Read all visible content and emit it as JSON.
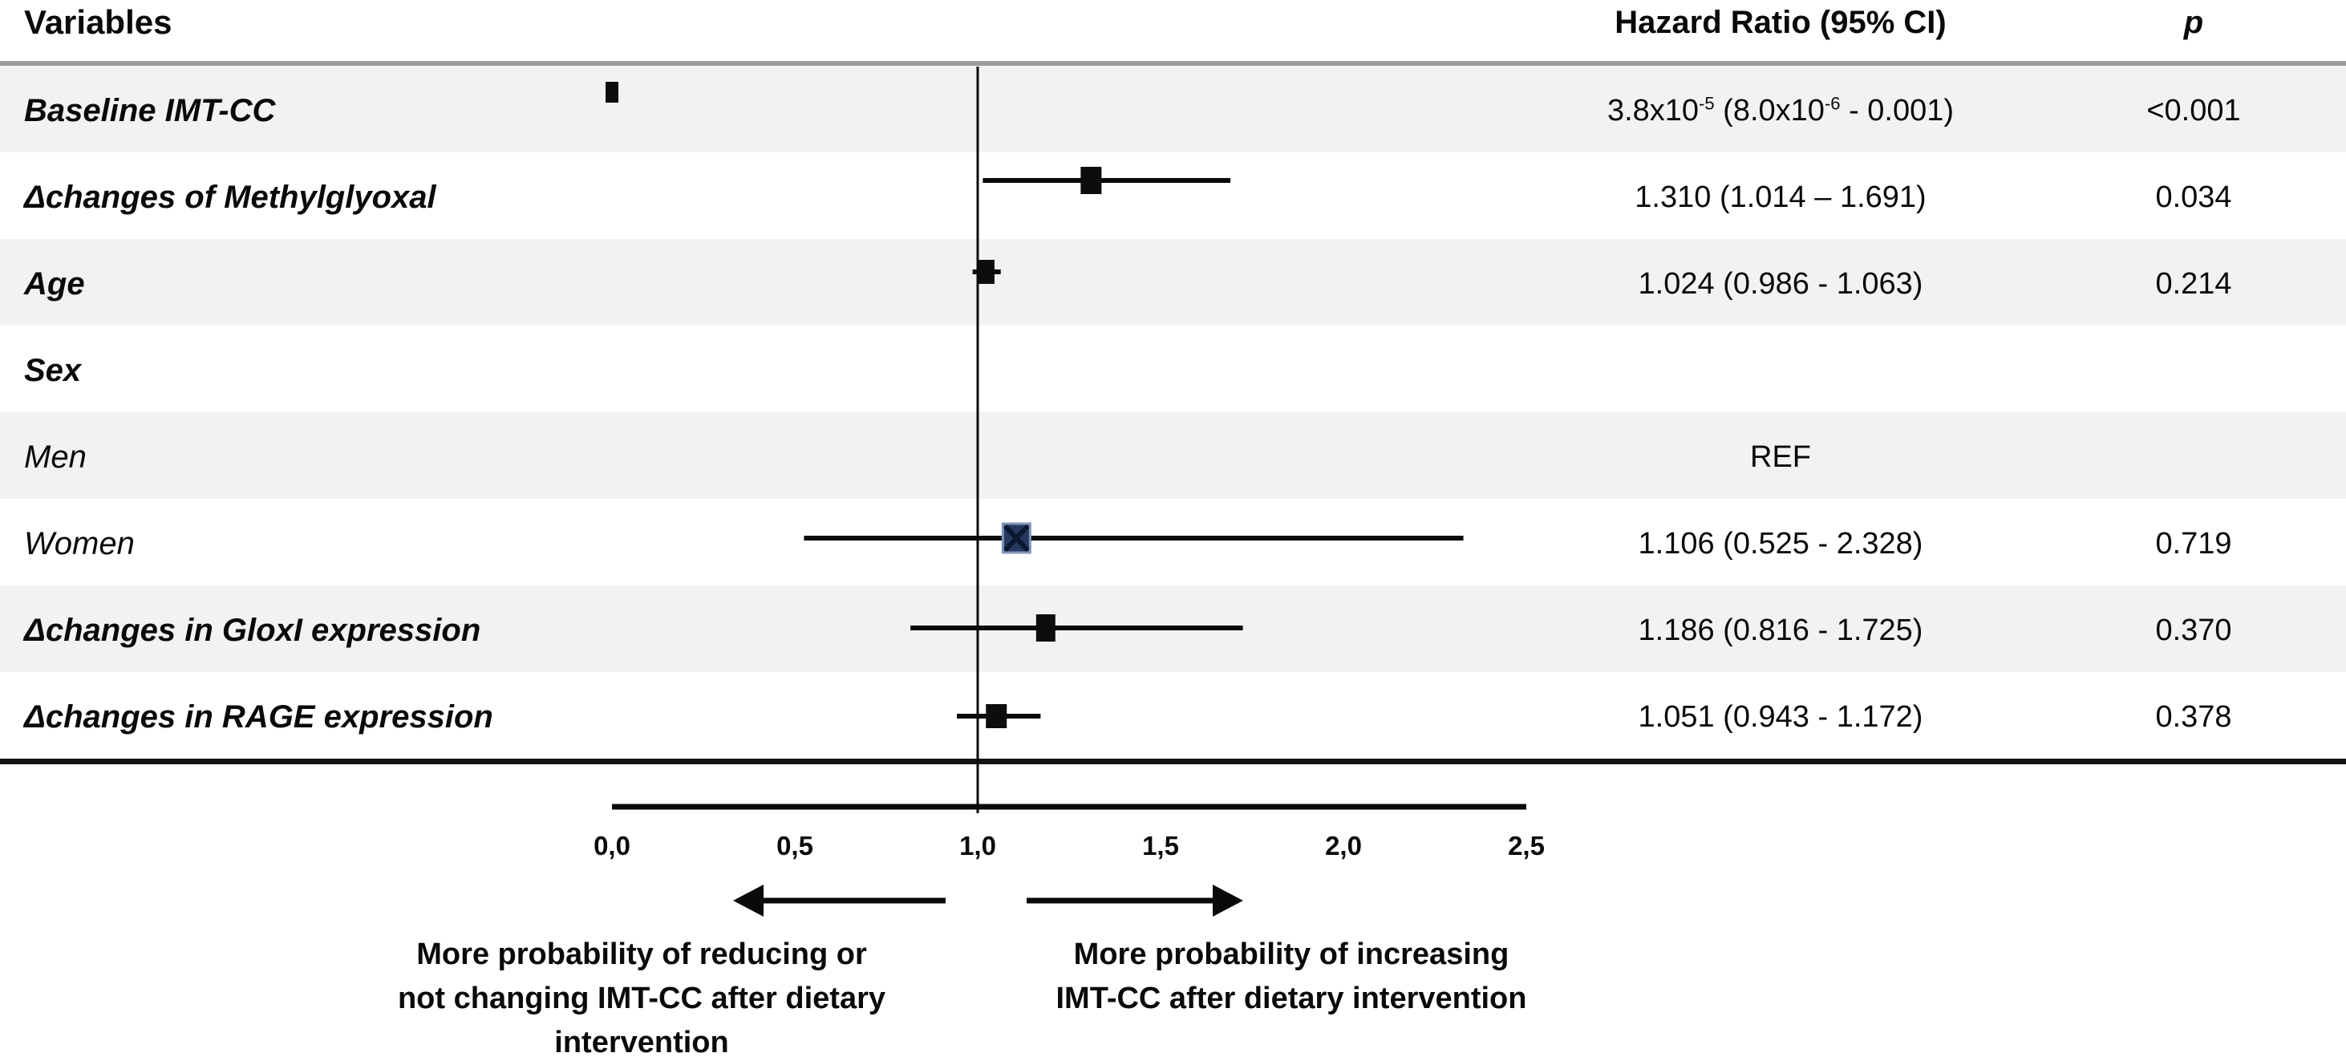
{
  "figure": {
    "columns": {
      "variables": "Variables",
      "hazard_ratio": "Hazard Ratio (95% CI)",
      "p": "p"
    }
  },
  "chart_data": {
    "type": "forest",
    "title": "Forest plot of hazard ratios for IMT-CC change after dietary intervention",
    "xlabel": "",
    "xlim": [
      0,
      2.5
    ],
    "grid": false,
    "reference_value": 1.0,
    "x_axis": {
      "ticks_values": [
        0,
        0.5,
        1.0,
        1.5,
        2.0,
        2.5
      ],
      "tick_labels": [
        "0,0",
        "0,5",
        "1,0",
        "1,5",
        "2,0",
        "2,5"
      ]
    },
    "rows": [
      {
        "variable": "Baseline IMT-CC",
        "emphasis": "bold-italic",
        "hr": 3.8e-05,
        "ci_low": 8e-06,
        "ci_high": 0.001,
        "hr_label": [
          {
            "text": "3.8x10"
          },
          {
            "text": "-5",
            "sup": true
          },
          {
            "text": " (8.0x10"
          },
          {
            "text": "-6",
            "sup": true
          },
          {
            "text": " - 0.001)"
          }
        ],
        "p": "<0.001"
      },
      {
        "variable": "Δchanges of Methylglyoxal",
        "emphasis": "bold-italic",
        "hr": 1.31,
        "ci_low": 1.014,
        "ci_high": 1.691,
        "hr_label": [
          {
            "text": "1.310 (1.014 – 1.691)"
          }
        ],
        "p": "0.034"
      },
      {
        "variable": "Age",
        "emphasis": "bold-italic",
        "hr": 1.024,
        "ci_low": 0.986,
        "ci_high": 1.063,
        "hr_label": [
          {
            "text": "1.024 (0.986 - 1.063)"
          }
        ],
        "p": "0.214"
      },
      {
        "variable": "Sex",
        "emphasis": "bold-italic",
        "hr": null,
        "ci_low": null,
        "ci_high": null,
        "hr_label": [],
        "p": ""
      },
      {
        "variable": "Men",
        "emphasis": "italic",
        "hr": null,
        "ci_low": null,
        "ci_high": null,
        "hr_label": [
          {
            "text": "REF"
          }
        ],
        "p": ""
      },
      {
        "variable": "Women",
        "emphasis": "italic",
        "hr": 1.106,
        "ci_low": 0.525,
        "ci_high": 2.328,
        "hr_label": [
          {
            "text": "1.106 (0.525 - 2.328)"
          }
        ],
        "p": "0.719",
        "marker_style": "navy-x"
      },
      {
        "variable": "Δchanges in GloxI expression",
        "emphasis": "bold-italic",
        "hr": 1.186,
        "ci_low": 0.816,
        "ci_high": 1.725,
        "hr_label": [
          {
            "text": "1.186 (0.816 - 1.725)"
          }
        ],
        "p": "0.370"
      },
      {
        "variable": "Δchanges in RAGE expression",
        "emphasis": "bold-italic",
        "hr": 1.051,
        "ci_low": 0.943,
        "ci_high": 1.172,
        "hr_label": [
          {
            "text": "1.051 (0.943 - 1.172)"
          }
        ],
        "p": "0.378"
      }
    ],
    "annotations": {
      "left_arrow_text": [
        "More probability of reducing or",
        "not changing IMT-CC after dietary",
        "intervention"
      ],
      "right_arrow_text": [
        "More probability of increasing",
        "IMT-CC after dietary intervention"
      ]
    }
  },
  "colors": {
    "row_alt_bg": "#f2f2f2",
    "separator_gray": "#9c9c9c",
    "bottom_rule": "#141414",
    "marker_black": "#0d0d0d",
    "women_marker_fill": "#25385e",
    "women_marker_border": "#8195ba",
    "women_marker_x": "#0c1730"
  }
}
